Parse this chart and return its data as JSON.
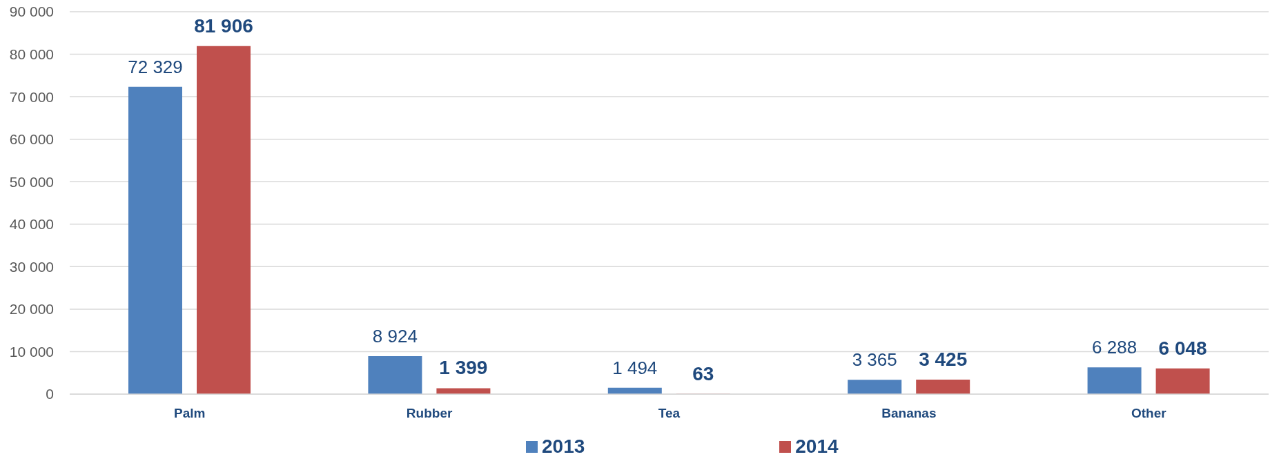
{
  "chart_data": {
    "type": "bar",
    "categories": [
      "Palm",
      "Rubber",
      "Tea",
      "Bananas",
      "Other"
    ],
    "series": [
      {
        "name": "2013",
        "color": "#4f81bd",
        "values": [
          72329,
          8924,
          1494,
          3365,
          6288
        ]
      },
      {
        "name": "2014",
        "color": "#c0504d",
        "values": [
          81906,
          1399,
          63,
          3425,
          6048
        ]
      }
    ],
    "ylim": [
      0,
      90000
    ],
    "yticks": [
      0,
      10000,
      20000,
      30000,
      40000,
      50000,
      60000,
      70000,
      80000,
      90000
    ],
    "grid": "y",
    "legend": "bottom",
    "data_labels": true
  }
}
